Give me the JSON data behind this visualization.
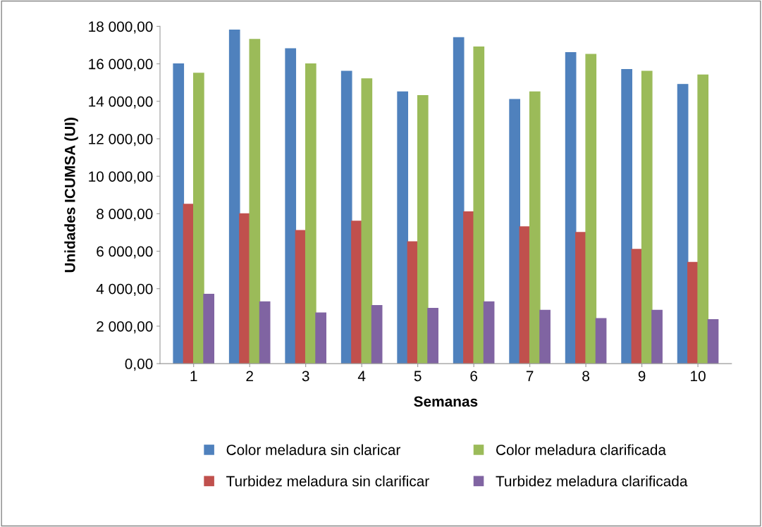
{
  "chart_data": {
    "type": "bar",
    "xlabel": "Semanas",
    "ylabel": "Unidades ICUMSA (UI)",
    "categories": [
      "1",
      "2",
      "3",
      "4",
      "5",
      "6",
      "7",
      "8",
      "9",
      "10"
    ],
    "series": [
      {
        "name": "Color meladura sin claricar",
        "color": "#4f81bd",
        "values": [
          16000,
          17800,
          16800,
          15600,
          14500,
          17400,
          14100,
          16600,
          15700,
          14900
        ]
      },
      {
        "name": "Turbidez meladura sin clarificar",
        "color": "#c0504d",
        "values": [
          8500,
          8000,
          7100,
          7600,
          6500,
          8100,
          7300,
          7000,
          6100,
          5400
        ]
      },
      {
        "name": "Color meladura clarificada",
        "color": "#9bbb59",
        "values": [
          15500,
          17300,
          16000,
          15200,
          14300,
          16900,
          14500,
          16500,
          15600,
          15400
        ]
      },
      {
        "name": "Turbidez meladura clarificada",
        "color": "#8064a2",
        "values": [
          3700,
          3300,
          2700,
          3100,
          2950,
          3300,
          2850,
          2400,
          2850,
          2350
        ]
      }
    ],
    "ylim": [
      0,
      18000
    ],
    "yticks": [
      {
        "value": 0,
        "label": "0,00"
      },
      {
        "value": 2000,
        "label": "2 000,00"
      },
      {
        "value": 4000,
        "label": "4 000,00"
      },
      {
        "value": 6000,
        "label": "6 000,00"
      },
      {
        "value": 8000,
        "label": "8 000,00"
      },
      {
        "value": 10000,
        "label": "10 000,00"
      },
      {
        "value": 12000,
        "label": "12 000,00"
      },
      {
        "value": 14000,
        "label": "14 000,00"
      },
      {
        "value": 16000,
        "label": "16 000,00"
      },
      {
        "value": 18000,
        "label": "18 000,00"
      }
    ],
    "grid": false,
    "legend": "bottom"
  }
}
